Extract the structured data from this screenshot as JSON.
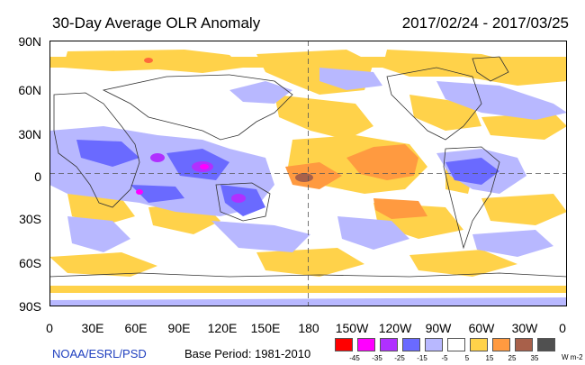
{
  "title": "30-Day Average OLR Anomaly",
  "date_range": "2017/02/24 - 2017/03/25",
  "lat_labels": [
    "90N",
    "60N",
    "30N",
    "0",
    "30S",
    "60S",
    "90S"
  ],
  "lon_labels": [
    "0",
    "30E",
    "60E",
    "90E",
    "120E",
    "150E",
    "180",
    "150W",
    "120W",
    "90W",
    "60W",
    "30W",
    "0"
  ],
  "source": "NOAA/ESRL/PSD",
  "base_period": "Base Period: 1981-2010",
  "legend": {
    "colors": [
      "#ff0000",
      "#ff00ff",
      "#b030ff",
      "#6a6aff",
      "#b8b8ff",
      "#ffffff",
      "#ffd24a",
      "#ff9a40",
      "#a8604a",
      "#505050"
    ],
    "ticks": [
      "-45",
      "-35",
      "-25",
      "-15",
      "-5",
      "5",
      "15",
      "25",
      "35"
    ],
    "units": "W m-2"
  }
}
